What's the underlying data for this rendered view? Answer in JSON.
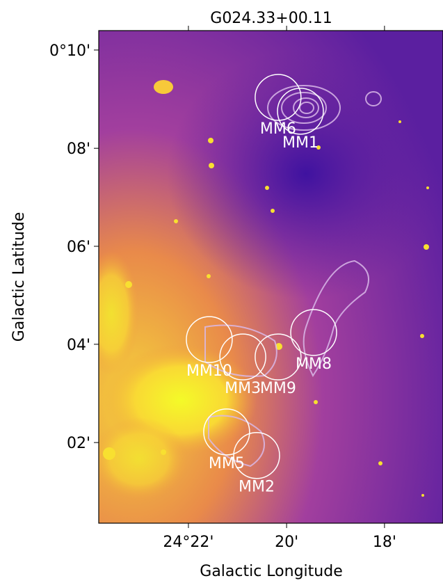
{
  "chart_data": {
    "type": "image",
    "title": "G024.33+00.11",
    "x_label": "Galactic Longitude",
    "y_label": "Galactic Latitude",
    "xlim": [
      24.3972,
      24.2801
    ],
    "ylim": [
      0.0059,
      0.1733
    ],
    "xticks": [
      {
        "value": 24.3667,
        "label": "24°22'"
      },
      {
        "value": 24.3333,
        "label": "20'"
      },
      {
        "value": 24.3,
        "label": "18'"
      }
    ],
    "yticks": [
      {
        "value": 0.1667,
        "label": "0°10'"
      },
      {
        "value": 0.1333,
        "label": "08'"
      },
      {
        "value": 0.1,
        "label": "06'"
      },
      {
        "value": 0.0667,
        "label": "04'"
      },
      {
        "value": 0.0333,
        "label": "02'"
      }
    ],
    "circle_radius": 0.0078,
    "circle_color": "#ffffff",
    "sources": [
      {
        "name": "MM6",
        "l": 24.3362,
        "b": 0.1506
      },
      {
        "name": "MM1",
        "l": 24.3286,
        "b": 0.1459
      },
      {
        "name": "MM10",
        "l": 24.3596,
        "b": 0.0683
      },
      {
        "name": "MM3",
        "l": 24.3482,
        "b": 0.0624
      },
      {
        "name": "MM9",
        "l": 24.3362,
        "b": 0.0624
      },
      {
        "name": "MM8",
        "l": 24.3241,
        "b": 0.0707
      },
      {
        "name": "MM5",
        "l": 24.3537,
        "b": 0.0369
      },
      {
        "name": "MM2",
        "l": 24.3435,
        "b": 0.0289
      }
    ]
  }
}
